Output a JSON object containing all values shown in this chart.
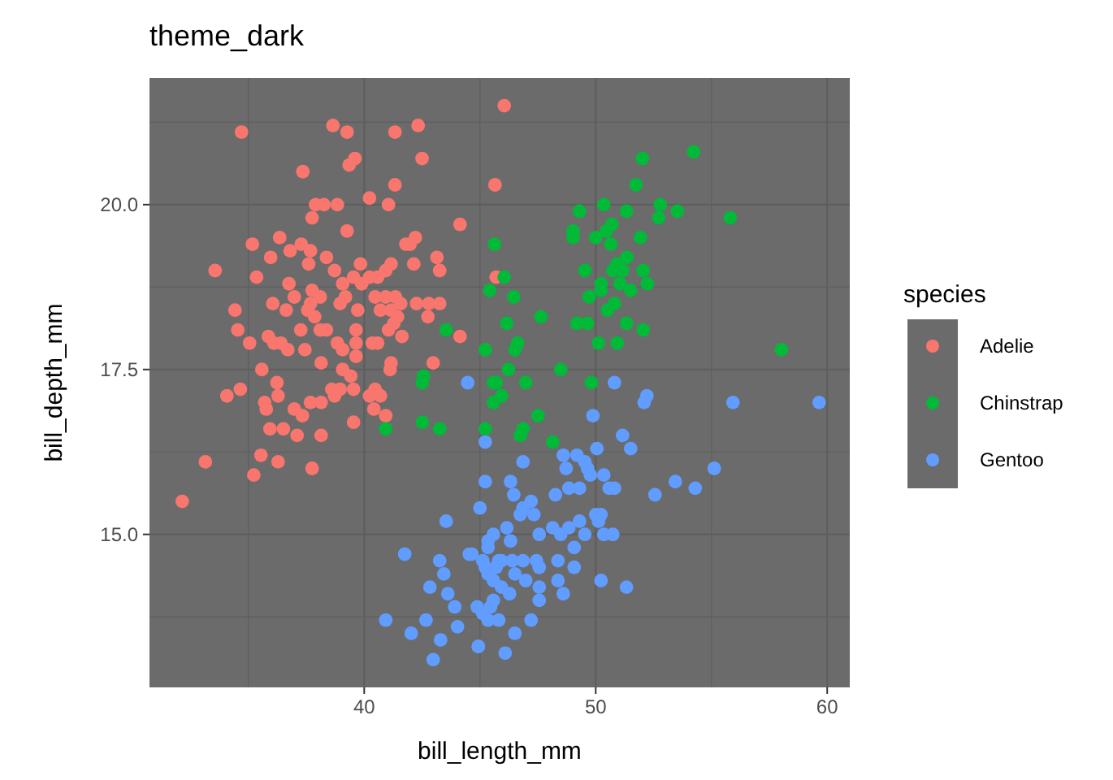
{
  "chart_data": {
    "type": "scatter",
    "title": "theme_dark",
    "xlabel": "bill_length_mm",
    "ylabel": "bill_depth_mm",
    "legend_title": "species",
    "legend": "right",
    "grid": true,
    "marker": "circle",
    "xlim": [
      30.725,
      60.975
    ],
    "ylim": [
      12.68,
      21.92
    ],
    "xticks": [
      {
        "value": 35,
        "label": null
      },
      40,
      {
        "value": 45,
        "label": null
      },
      50,
      {
        "value": 55,
        "label": null
      },
      60
    ],
    "yticks": [
      {
        "value": 13.75,
        "label": null
      },
      {
        "value": 15,
        "label": "15.0"
      },
      {
        "value": 16.25,
        "label": null
      },
      17.5,
      {
        "value": 18.75,
        "label": null
      },
      {
        "value": 20,
        "label": "20.0"
      },
      {
        "value": 21.25,
        "label": null
      }
    ],
    "series": [
      {
        "name": "Adelie",
        "color": "#f8766d",
        "x": [
          34.7,
          38.65,
          39.26,
          41.33,
          42.33,
          39.6,
          39.35,
          42.5,
          37.35,
          41.33,
          40.23,
          41.05,
          37.9,
          38.26,
          38.84,
          37.75,
          39.26,
          44.14,
          45.65,
          46.05,
          36.35,
          35.17,
          37.28,
          37.68,
          36.8,
          35.96,
          38.37,
          37.6,
          41.98,
          42.21,
          41.8,
          43.14,
          43.26,
          42.14,
          33.56,
          35.35,
          38.72,
          39.84,
          41.16,
          40.93,
          40.58,
          40.23,
          39.89,
          39.54,
          36.75,
          36.98,
          36.63,
          36.05,
          37.75,
          38.1,
          37.68,
          37.56,
          37.86,
          39.07,
          39.19,
          38.96,
          34.42,
          40.47,
          40.93,
          41.35,
          41.58,
          40.7,
          41.16,
          41.44,
          42.26,
          42.79,
          43.26,
          39.72,
          42.75,
          34.54,
          35.05,
          35.58,
          35.86,
          36.1,
          36.4,
          36.7,
          37.44,
          37.26,
          38.1,
          38.37,
          38.84,
          39.07,
          39.65,
          39.65,
          39.65,
          39.07,
          40.35,
          40.58,
          41.05,
          41.28,
          41.63,
          38.14,
          41.16,
          41.12,
          42.98,
          44.14,
          45.7,
          34.07,
          34.65,
          36.23,
          35.7,
          36.28,
          35.77,
          36.98,
          37.33,
          37.68,
          38.14,
          38.72,
          38.6,
          38.96,
          39.54,
          39.42,
          40.23,
          40.47,
          40.7,
          40.93,
          40.42,
          35.93,
          36.51,
          37.1,
          38.14,
          39.54,
          33.14,
          35.54,
          36.28,
          35.23,
          37.75,
          32.14
        ],
        "values": [
          21.1,
          21.2,
          21.1,
          21.1,
          21.2,
          20.7,
          20.6,
          20.7,
          20.5,
          20.3,
          20.1,
          20.0,
          20.0,
          20.0,
          20.0,
          19.8,
          19.6,
          19.7,
          20.3,
          21.5,
          19.5,
          19.4,
          19.4,
          19.3,
          19.3,
          19.2,
          19.2,
          19.1,
          19.4,
          19.5,
          19.4,
          19.2,
          19.0,
          19.1,
          19.0,
          18.9,
          19.0,
          19.1,
          19.1,
          19.0,
          18.9,
          18.9,
          18.8,
          18.9,
          18.8,
          18.6,
          18.4,
          18.5,
          18.7,
          18.6,
          18.5,
          18.4,
          18.3,
          18.8,
          18.6,
          18.5,
          18.4,
          18.6,
          18.6,
          18.6,
          18.5,
          18.4,
          18.4,
          18.3,
          18.5,
          18.5,
          18.5,
          18.4,
          18.3,
          18.1,
          17.9,
          17.5,
          18.0,
          17.9,
          17.9,
          17.8,
          17.8,
          18.1,
          18.1,
          18.1,
          17.9,
          17.8,
          18.1,
          17.9,
          17.7,
          17.5,
          17.9,
          17.9,
          18.1,
          18.2,
          18.0,
          17.6,
          17.6,
          17.5,
          17.6,
          18.0,
          18.9,
          17.1,
          17.2,
          17.3,
          17.0,
          17.1,
          16.9,
          16.9,
          16.8,
          17.0,
          17.0,
          17.1,
          17.2,
          17.2,
          17.2,
          17.4,
          17.1,
          17.2,
          17.1,
          16.8,
          16.9,
          16.6,
          16.6,
          16.5,
          16.5,
          16.7,
          16.1,
          16.2,
          16.1,
          15.9,
          16.0,
          15.5
        ]
      },
      {
        "name": "Chinstrap",
        "color": "#00ba38",
        "x": [
          52.02,
          54.23,
          51.74,
          50.35,
          49.3,
          51.33,
          52.79,
          53.53,
          52.72,
          55.81,
          50.7,
          50.46,
          50.0,
          50.65,
          49.02,
          49.02,
          51.93,
          45.63,
          51.35,
          50.93,
          51.16,
          50.74,
          52.05,
          49.53,
          50.23,
          51.05,
          51.51,
          52.23,
          49.72,
          50.23,
          46.05,
          45.42,
          46.46,
          47.63,
          50.81,
          50.51,
          46.16,
          49.19,
          49.65,
          51.33,
          52.05,
          50.12,
          50.93,
          46.63,
          46.51,
          45.23,
          58.02,
          46.23,
          48.49,
          45.7,
          46.98,
          49.81,
          43.54,
          42.56,
          42.51,
          40.93,
          42.51,
          43.26,
          45.23,
          45.58,
          45.58,
          45.93,
          47.51,
          46.86,
          46.74,
          48.14
        ],
        "values": [
          20.7,
          20.8,
          20.3,
          20.0,
          19.9,
          19.9,
          20.0,
          19.9,
          19.8,
          19.8,
          19.7,
          19.6,
          19.5,
          19.4,
          19.6,
          19.5,
          19.5,
          19.4,
          19.2,
          19.1,
          19.0,
          19.0,
          19.0,
          19.0,
          18.8,
          18.8,
          18.7,
          18.8,
          18.6,
          18.7,
          18.9,
          18.7,
          18.6,
          18.3,
          18.5,
          18.4,
          18.2,
          18.2,
          18.2,
          18.2,
          18.1,
          17.9,
          17.9,
          17.9,
          17.8,
          17.8,
          17.8,
          17.5,
          17.5,
          17.3,
          17.3,
          17.3,
          18.1,
          17.4,
          17.3,
          16.6,
          16.7,
          16.6,
          16.6,
          17.3,
          17.0,
          17.1,
          16.8,
          16.6,
          16.5,
          16.4
        ]
      },
      {
        "name": "Gentoo",
        "color": "#619cff",
        "x": [
          44.47,
          45.23,
          45.23,
          45.0,
          43.54,
          41.75,
          44.54,
          43.26,
          42.84,
          43.44,
          43.61,
          43.91,
          42.67,
          40.93,
          42.03,
          43.3,
          44.03,
          44.93,
          42.98,
          45.35,
          45.23,
          45.58,
          45.58,
          45.12,
          45.81,
          45.93,
          45.7,
          50.81,
          52.09,
          52.21,
          55.93,
          59.65,
          49.88,
          51.16,
          51.51,
          50.05,
          46.86,
          48.6,
          49.19,
          49.53,
          48.72,
          49.65,
          49.77,
          50.35,
          50.58,
          50.81,
          49.3,
          48.84,
          48.26,
          52.56,
          53.44,
          54.3,
          55.12,
          46.32,
          46.46,
          47.21,
          46.86,
          47.33,
          46.74,
          50.0,
          50.23,
          50.12,
          49.3,
          48.84,
          48.14,
          47.56,
          48.49,
          49.53,
          50.35,
          50.74,
          49.07,
          45.58,
          46.16,
          46.32,
          45.35,
          44.65,
          45.12,
          45.35,
          45.81,
          46.39,
          46.86,
          47.44,
          47.56,
          48.37,
          49.07,
          46.51,
          46.98,
          48.37,
          48.6,
          47.56,
          47.56,
          45.93,
          46.28,
          50.23,
          51.33,
          44.88,
          45.46,
          45.35,
          47.21,
          46.51,
          44.93,
          46.09
        ],
        "values": [
          17.3,
          16.4,
          15.8,
          15.4,
          15.2,
          14.7,
          14.7,
          14.6,
          14.2,
          14.4,
          14.1,
          13.9,
          13.7,
          13.7,
          13.5,
          13.4,
          13.6,
          13.3,
          13.1,
          14.9,
          14.5,
          14.3,
          14.0,
          13.8,
          13.7,
          14.6,
          14.5,
          17.3,
          17.0,
          17.1,
          17.0,
          17.0,
          16.8,
          16.5,
          16.3,
          16.3,
          16.1,
          16.2,
          16.2,
          16.1,
          16.0,
          16.0,
          15.9,
          15.9,
          15.7,
          15.7,
          15.7,
          15.7,
          15.6,
          15.6,
          15.8,
          15.7,
          16.0,
          15.8,
          15.6,
          15.5,
          15.4,
          15.3,
          15.3,
          15.3,
          15.3,
          15.2,
          15.2,
          15.1,
          15.1,
          15.0,
          15.0,
          15.0,
          15.0,
          15.0,
          14.8,
          15.0,
          15.1,
          14.9,
          14.8,
          14.7,
          14.6,
          14.4,
          14.6,
          14.6,
          14.6,
          14.6,
          14.5,
          14.6,
          14.5,
          14.4,
          14.3,
          14.3,
          14.1,
          14.2,
          14.0,
          14.2,
          14.1,
          14.3,
          14.2,
          13.9,
          13.9,
          13.7,
          13.7,
          13.5,
          13.3,
          13.2
        ]
      }
    ]
  }
}
